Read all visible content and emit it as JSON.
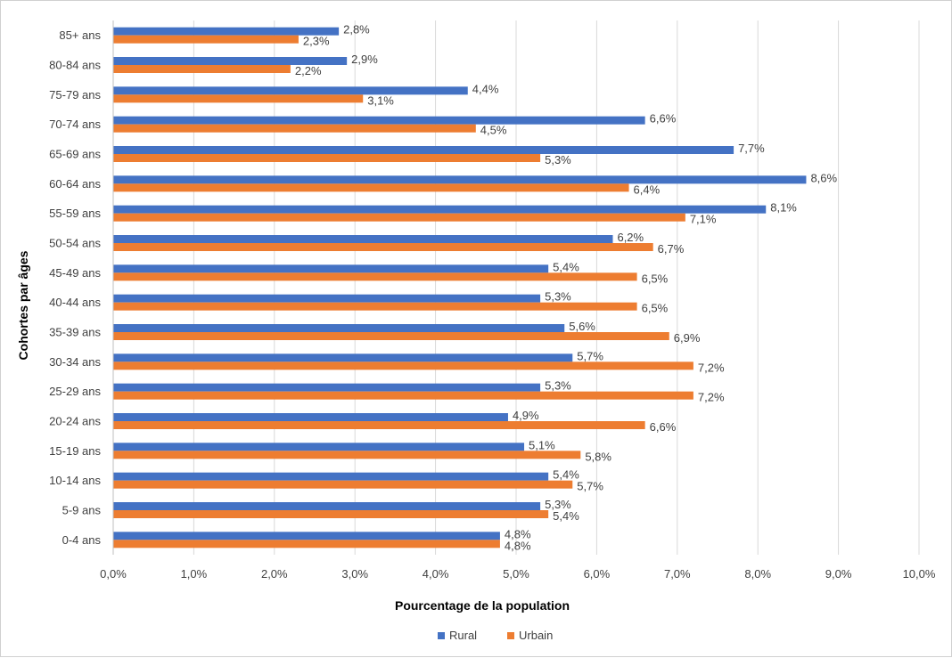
{
  "chart_data": {
    "type": "bar",
    "orientation": "horizontal",
    "categories": [
      "85+ ans",
      "80-84 ans",
      "75-79 ans",
      "70-74 ans",
      "65-69 ans",
      "60-64 ans",
      "55-59 ans",
      "50-54 ans",
      "45-49 ans",
      "40-44 ans",
      "35-39 ans",
      "30-34 ans",
      "25-29 ans",
      "20-24 ans",
      "15-19 ans",
      "10-14 ans",
      "5-9 ans",
      "0-4 ans"
    ],
    "series": [
      {
        "name": "Rural",
        "color": "#4472C4",
        "values": [
          2.8,
          2.9,
          4.4,
          6.6,
          7.7,
          8.6,
          8.1,
          6.2,
          5.4,
          5.3,
          5.6,
          5.7,
          5.3,
          4.9,
          5.1,
          5.4,
          5.3,
          4.8
        ],
        "labels": [
          "2,8%",
          "2,9%",
          "4,4%",
          "6,6%",
          "7,7%",
          "8,6%",
          "8,1%",
          "6,2%",
          "5,4%",
          "5,3%",
          "5,6%",
          "5,7%",
          "5,3%",
          "4,9%",
          "5,1%",
          "5,4%",
          "5,3%",
          "4,8%"
        ]
      },
      {
        "name": "Urbain",
        "color": "#ED7D31",
        "values": [
          2.3,
          2.2,
          3.1,
          4.5,
          5.3,
          6.4,
          7.1,
          6.7,
          6.5,
          6.5,
          6.9,
          7.2,
          7.2,
          6.6,
          5.8,
          5.7,
          5.4,
          4.8
        ],
        "labels": [
          "2,3%",
          "2,2%",
          "3,1%",
          "4,5%",
          "5,3%",
          "6,4%",
          "7,1%",
          "6,7%",
          "6,5%",
          "6,5%",
          "6,9%",
          "7,2%",
          "7,2%",
          "6,6%",
          "5,8%",
          "5,7%",
          "5,4%",
          "4,8%"
        ]
      }
    ],
    "xlim": [
      0,
      10
    ],
    "xticks": [
      0,
      1,
      2,
      3,
      4,
      5,
      6,
      7,
      8,
      9,
      10
    ],
    "xtick_labels": [
      "0,0%",
      "1,0%",
      "2,0%",
      "3,0%",
      "4,0%",
      "5,0%",
      "6,0%",
      "7,0%",
      "8,0%",
      "9,0%",
      "10,0%"
    ],
    "xlabel": "Pourcentage de la population",
    "ylabel": "Cohortes par âges",
    "grid": "vertical",
    "legend_position": "bottom"
  }
}
